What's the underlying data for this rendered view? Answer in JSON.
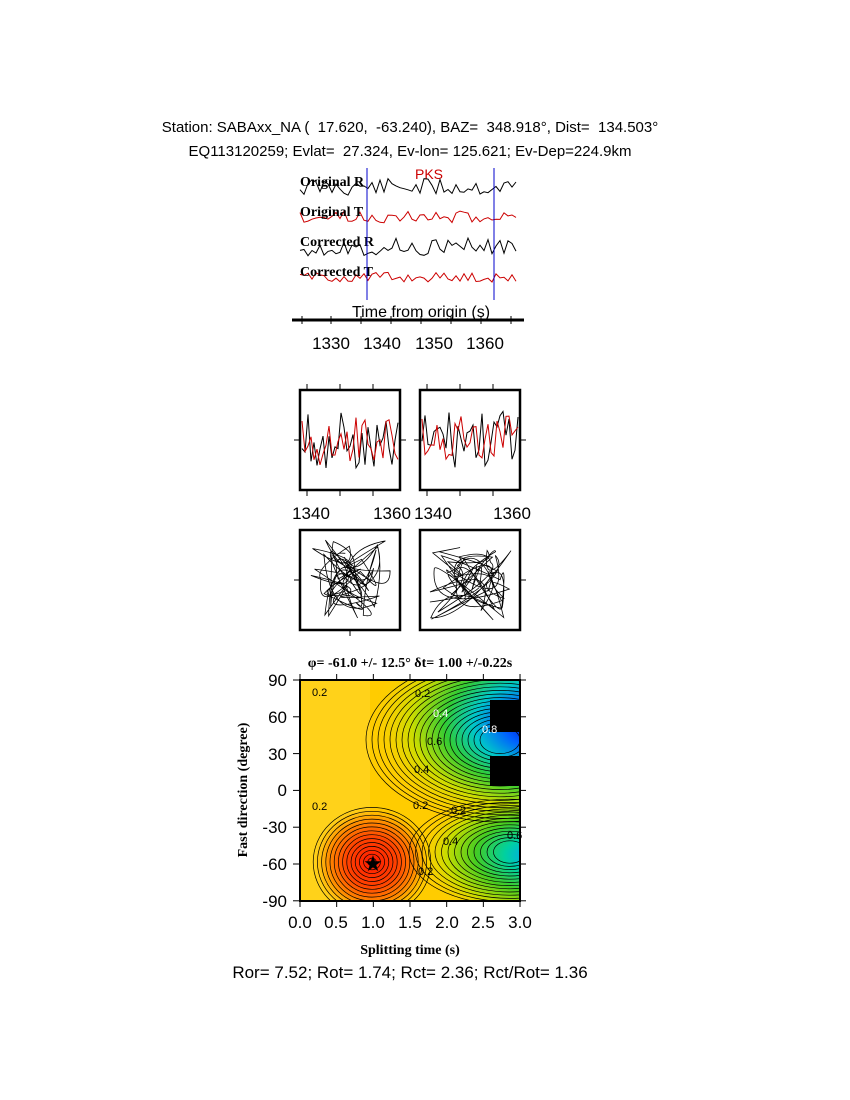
{
  "header": {
    "line1": "Station: SABAxx_NA (  17.620,  -63.240), BAZ=  348.918°, Dist=  134.503°",
    "line2": "EQ113120259; Evlat=  27.324, Ev-lon= 125.621; Ev-Dep=224.9km"
  },
  "traces": {
    "phase_label": "PKS",
    "labels": [
      "Original R",
      "Original T",
      "Corrected R",
      "Corrected T"
    ],
    "xlabel": "Time from origin (s)",
    "ticks": [
      "1330",
      "1340",
      "1350",
      "1360"
    ],
    "colors": {
      "radial": "#000000",
      "transverse": "#cc0000",
      "marker": "#0000cc"
    }
  },
  "waveform_boxes": {
    "left_ticks": [
      "1340",
      "1360"
    ],
    "right_ticks": [
      "1340",
      "1360"
    ]
  },
  "result_title": {
    "phi": "φ= -61.0 +/- 12.5° δt= 1.00 +/-0.22s"
  },
  "chart_data": {
    "type": "heatmap",
    "title": "φ= -61.0 +/- 12.5° δt= 1.00 +/-0.22s",
    "xlabel": "Splitting time (s)",
    "ylabel": "Fast direction (degree)",
    "xlim": [
      0.0,
      3.0
    ],
    "ylim": [
      -90,
      90
    ],
    "x_ticks": [
      "0.0",
      "0.5",
      "1.0",
      "1.5",
      "2.0",
      "2.5",
      "3.0"
    ],
    "y_ticks": [
      "90",
      "60",
      "30",
      "0",
      "-30",
      "-60",
      "-90"
    ],
    "contour_labels": [
      "0.2",
      "0.2",
      "0.4",
      "0.6",
      "0.8",
      "0.4",
      "0.2",
      "0.2",
      "0.2",
      "0.4",
      "0.6",
      "0.2"
    ],
    "best_fit": {
      "dt": 1.0,
      "phi": -61.0
    }
  },
  "footer": "Ror= 7.52; Rot= 1.74; Rct= 2.36; Rct/Rot= 1.36"
}
